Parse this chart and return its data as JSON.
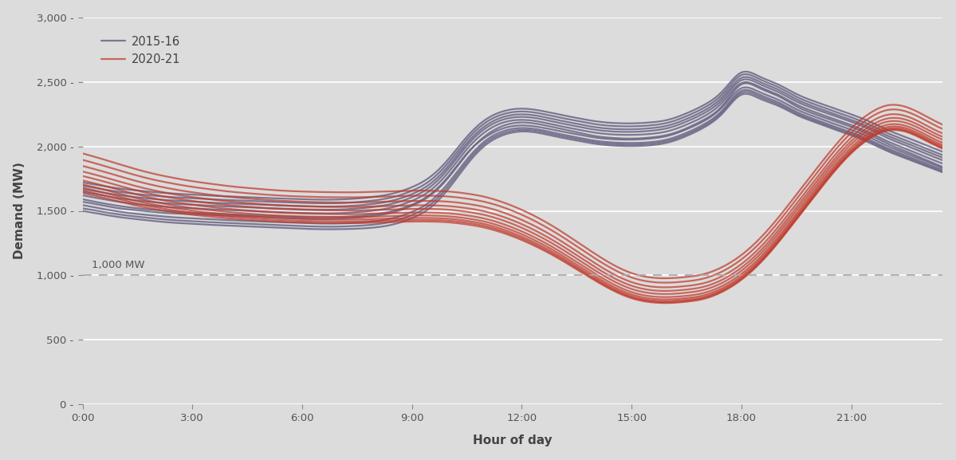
{
  "background_color": "#dcdcdc",
  "plot_bg_color": "#dcdcdc",
  "xlabel": "Hour of day",
  "ylabel": "Demand (MW)",
  "ylim": [
    0,
    3000
  ],
  "yticks": [
    0,
    500,
    1000,
    1500,
    2000,
    2500,
    3000
  ],
  "ytick_labels": [
    "0",
    "500",
    "1,000",
    "1,500",
    "2,000",
    "2,500",
    "3,000"
  ],
  "xtick_hours": [
    0,
    3,
    6,
    9,
    12,
    15,
    18,
    21
  ],
  "xtick_labels": [
    "0:00",
    "3:00",
    "6:00",
    "9:00",
    "12:00",
    "15:00",
    "18:00",
    "21:00"
  ],
  "dashed_line_y": 1000,
  "dashed_label": "1,000 MW",
  "color_2015": "#6b6585",
  "color_2020": "#c0392b",
  "alpha_2015": 0.85,
  "alpha_2020": 0.72,
  "lw_2015": 1.6,
  "lw_2020": 1.6,
  "hours": [
    0,
    0.5,
    1,
    1.5,
    2,
    2.5,
    3,
    3.5,
    4,
    4.5,
    5,
    5.5,
    6,
    6.5,
    7,
    7.5,
    8,
    8.5,
    9,
    9.5,
    10,
    10.5,
    11,
    11.5,
    12,
    12.5,
    13,
    13.5,
    14,
    14.5,
    15,
    15.5,
    16,
    16.5,
    17,
    17.5,
    18,
    18.5,
    19,
    19.5,
    20,
    20.5,
    21,
    21.5,
    22,
    22.5,
    23,
    23.5
  ],
  "lines_2015": [
    [
      1570,
      1545,
      1520,
      1505,
      1490,
      1480,
      1475,
      1468,
      1462,
      1456,
      1450,
      1445,
      1440,
      1438,
      1440,
      1448,
      1462,
      1490,
      1540,
      1620,
      1760,
      1940,
      2080,
      2160,
      2185,
      2170,
      2140,
      2110,
      2080,
      2065,
      2060,
      2068,
      2090,
      2140,
      2210,
      2320,
      2480,
      2450,
      2390,
      2310,
      2250,
      2200,
      2150,
      2090,
      2020,
      1960,
      1900,
      1840
    ],
    [
      1590,
      1562,
      1538,
      1520,
      1506,
      1495,
      1488,
      1480,
      1474,
      1468,
      1462,
      1457,
      1452,
      1450,
      1452,
      1460,
      1474,
      1500,
      1548,
      1628,
      1768,
      1945,
      2070,
      2140,
      2162,
      2148,
      2120,
      2094,
      2068,
      2055,
      2052,
      2060,
      2082,
      2132,
      2200,
      2310,
      2450,
      2420,
      2362,
      2288,
      2230,
      2178,
      2128,
      2070,
      2002,
      1945,
      1888,
      1832
    ],
    [
      1545,
      1518,
      1494,
      1476,
      1462,
      1450,
      1442,
      1434,
      1428,
      1422,
      1416,
      1411,
      1406,
      1402,
      1402,
      1408,
      1420,
      1445,
      1492,
      1572,
      1718,
      1898,
      2042,
      2118,
      2142,
      2128,
      2098,
      2070,
      2044,
      2030,
      2026,
      2032,
      2055,
      2105,
      2175,
      2285,
      2430,
      2400,
      2342,
      2268,
      2210,
      2158,
      2108,
      2050,
      1984,
      1928,
      1872,
      1818
    ],
    [
      1520,
      1495,
      1472,
      1455,
      1440,
      1428,
      1420,
      1412,
      1406,
      1400,
      1394,
      1388,
      1382,
      1378,
      1378,
      1384,
      1395,
      1420,
      1468,
      1548,
      1695,
      1878,
      2025,
      2102,
      2128,
      2115,
      2085,
      2058,
      2032,
      2018,
      2014,
      2020,
      2042,
      2092,
      2162,
      2272,
      2415,
      2385,
      2328,
      2255,
      2198,
      2146,
      2096,
      2038,
      1972,
      1915,
      1860,
      1806
    ],
    [
      1500,
      1475,
      1452,
      1435,
      1420,
      1408,
      1400,
      1392,
      1386,
      1380,
      1374,
      1368,
      1362,
      1358,
      1358,
      1362,
      1372,
      1396,
      1444,
      1525,
      1672,
      1858,
      2008,
      2088,
      2115,
      2102,
      2072,
      2045,
      2020,
      2006,
      2002,
      2008,
      2030,
      2080,
      2150,
      2260,
      2400,
      2370,
      2315,
      2244,
      2188,
      2136,
      2086,
      2028,
      1962,
      1906,
      1852,
      1798
    ],
    [
      1620,
      1594,
      1570,
      1552,
      1538,
      1527,
      1520,
      1512,
      1506,
      1500,
      1494,
      1489,
      1484,
      1481,
      1482,
      1490,
      1504,
      1530,
      1578,
      1658,
      1800,
      1978,
      2112,
      2185,
      2205,
      2190,
      2160,
      2132,
      2106,
      2092,
      2089,
      2096,
      2118,
      2168,
      2236,
      2346,
      2490,
      2460,
      2400,
      2325,
      2266,
      2215,
      2165,
      2106,
      2038,
      1980,
      1922,
      1866
    ],
    [
      1648,
      1622,
      1598,
      1580,
      1566,
      1555,
      1548,
      1540,
      1534,
      1528,
      1522,
      1517,
      1512,
      1509,
      1510,
      1518,
      1532,
      1558,
      1606,
      1686,
      1828,
      2005,
      2138,
      2208,
      2228,
      2213,
      2183,
      2155,
      2129,
      2115,
      2112,
      2120,
      2142,
      2192,
      2260,
      2368,
      2512,
      2482,
      2422,
      2348,
      2290,
      2240,
      2190,
      2132,
      2064,
      2006,
      1948,
      1892
    ],
    [
      1670,
      1645,
      1622,
      1605,
      1590,
      1580,
      1572,
      1564,
      1558,
      1552,
      1546,
      1541,
      1536,
      1533,
      1534,
      1542,
      1556,
      1582,
      1630,
      1710,
      1850,
      2025,
      2158,
      2228,
      2248,
      2233,
      2203,
      2175,
      2149,
      2135,
      2132,
      2140,
      2162,
      2212,
      2280,
      2388,
      2530,
      2500,
      2440,
      2365,
      2306,
      2255,
      2205,
      2148,
      2082,
      2025,
      1968,
      1912
    ],
    [
      1695,
      1670,
      1647,
      1630,
      1616,
      1606,
      1598,
      1590,
      1584,
      1578,
      1572,
      1567,
      1562,
      1559,
      1560,
      1568,
      1582,
      1608,
      1656,
      1736,
      1876,
      2050,
      2182,
      2250,
      2270,
      2255,
      2225,
      2198,
      2172,
      2158,
      2155,
      2162,
      2184,
      2234,
      2302,
      2410,
      2552,
      2520,
      2460,
      2385,
      2326,
      2275,
      2225,
      2168,
      2102,
      2045,
      1988,
      1932
    ],
    [
      1720,
      1696,
      1674,
      1658,
      1644,
      1634,
      1626,
      1618,
      1612,
      1606,
      1600,
      1595,
      1590,
      1587,
      1588,
      1596,
      1610,
      1636,
      1684,
      1764,
      1902,
      2074,
      2205,
      2272,
      2292,
      2277,
      2248,
      2220,
      2195,
      2181,
      2178,
      2185,
      2206,
      2256,
      2324,
      2432,
      2572,
      2540,
      2480,
      2406,
      2348,
      2298,
      2248,
      2192,
      2126,
      2070,
      2014,
      1958
    ]
  ],
  "lines_2020": [
    [
      1945,
      1905,
      1862,
      1820,
      1784,
      1755,
      1730,
      1710,
      1692,
      1678,
      1666,
      1656,
      1650,
      1646,
      1644,
      1644,
      1648,
      1652,
      1656,
      1656,
      1650,
      1634,
      1608,
      1565,
      1508,
      1438,
      1355,
      1262,
      1168,
      1082,
      1018,
      985,
      978,
      988,
      1012,
      1068,
      1158,
      1285,
      1445,
      1625,
      1808,
      1985,
      2140,
      2255,
      2318,
      2305,
      2240,
      2168
    ],
    [
      1895,
      1856,
      1814,
      1773,
      1738,
      1710,
      1686,
      1667,
      1650,
      1637,
      1626,
      1617,
      1611,
      1607,
      1605,
      1605,
      1609,
      1613,
      1617,
      1617,
      1611,
      1595,
      1569,
      1527,
      1470,
      1400,
      1318,
      1226,
      1132,
      1048,
      984,
      951,
      944,
      954,
      978,
      1034,
      1124,
      1250,
      1410,
      1590,
      1772,
      1950,
      2105,
      2220,
      2282,
      2270,
      2206,
      2135
    ],
    [
      1848,
      1810,
      1769,
      1729,
      1695,
      1667,
      1644,
      1625,
      1609,
      1596,
      1585,
      1577,
      1571,
      1567,
      1565,
      1565,
      1569,
      1573,
      1577,
      1577,
      1571,
      1555,
      1529,
      1487,
      1430,
      1361,
      1279,
      1188,
      1095,
      1011,
      948,
      915,
      908,
      918,
      942,
      998,
      1088,
      1214,
      1374,
      1554,
      1736,
      1914,
      2068,
      2183,
      2245,
      2234,
      2170,
      2100
    ],
    [
      1805,
      1768,
      1728,
      1689,
      1656,
      1629,
      1607,
      1589,
      1573,
      1561,
      1550,
      1542,
      1537,
      1533,
      1531,
      1531,
      1535,
      1539,
      1543,
      1543,
      1537,
      1521,
      1495,
      1453,
      1397,
      1328,
      1247,
      1157,
      1065,
      982,
      920,
      887,
      880,
      890,
      914,
      970,
      1060,
      1186,
      1346,
      1526,
      1708,
      1886,
      2040,
      2154,
      2216,
      2206,
      2143,
      2074
    ],
    [
      1770,
      1734,
      1695,
      1657,
      1624,
      1598,
      1577,
      1559,
      1544,
      1532,
      1521,
      1514,
      1508,
      1505,
      1503,
      1503,
      1507,
      1511,
      1515,
      1515,
      1509,
      1493,
      1467,
      1425,
      1369,
      1300,
      1220,
      1130,
      1039,
      957,
      895,
      863,
      856,
      866,
      890,
      946,
      1036,
      1162,
      1322,
      1502,
      1684,
      1862,
      2016,
      2130,
      2192,
      2182,
      2120,
      2052
    ],
    [
      1736,
      1701,
      1663,
      1626,
      1594,
      1568,
      1548,
      1530,
      1515,
      1503,
      1493,
      1485,
      1480,
      1477,
      1475,
      1475,
      1479,
      1483,
      1487,
      1487,
      1481,
      1465,
      1439,
      1397,
      1341,
      1273,
      1193,
      1104,
      1014,
      932,
      871,
      839,
      832,
      842,
      866,
      922,
      1012,
      1138,
      1298,
      1478,
      1660,
      1838,
      1992,
      2106,
      2168,
      2158,
      2096,
      2028
    ],
    [
      1705,
      1671,
      1634,
      1597,
      1567,
      1542,
      1522,
      1505,
      1491,
      1479,
      1469,
      1462,
      1457,
      1454,
      1452,
      1452,
      1456,
      1460,
      1464,
      1464,
      1458,
      1442,
      1416,
      1374,
      1319,
      1251,
      1172,
      1083,
      994,
      913,
      853,
      821,
      814,
      824,
      848,
      904,
      994,
      1120,
      1280,
      1460,
      1642,
      1820,
      1974,
      2088,
      2150,
      2140,
      2078,
      2010
    ],
    [
      1680,
      1647,
      1611,
      1575,
      1546,
      1522,
      1502,
      1485,
      1472,
      1460,
      1450,
      1443,
      1438,
      1435,
      1433,
      1433,
      1437,
      1441,
      1445,
      1445,
      1439,
      1423,
      1397,
      1355,
      1300,
      1233,
      1155,
      1067,
      979,
      899,
      839,
      808,
      801,
      811,
      835,
      891,
      981,
      1107,
      1267,
      1447,
      1629,
      1807,
      1961,
      2075,
      2137,
      2127,
      2065,
      1997
    ],
    [
      1658,
      1626,
      1591,
      1556,
      1528,
      1504,
      1485,
      1469,
      1456,
      1445,
      1435,
      1428,
      1423,
      1420,
      1418,
      1418,
      1422,
      1426,
      1430,
      1430,
      1424,
      1408,
      1382,
      1340,
      1286,
      1219,
      1142,
      1055,
      968,
      889,
      830,
      799,
      792,
      802,
      826,
      882,
      972,
      1098,
      1258,
      1438,
      1620,
      1798,
      1952,
      2066,
      2128,
      2118,
      2056,
      1988
    ],
    [
      1638,
      1607,
      1573,
      1539,
      1512,
      1489,
      1470,
      1455,
      1442,
      1431,
      1422,
      1415,
      1410,
      1407,
      1405,
      1405,
      1409,
      1413,
      1417,
      1417,
      1411,
      1395,
      1369,
      1328,
      1274,
      1208,
      1132,
      1046,
      960,
      882,
      823,
      793,
      786,
      796,
      820,
      876,
      966,
      1092,
      1252,
      1432,
      1614,
      1792,
      1946,
      2060,
      2122,
      2112,
      2050,
      1982
    ]
  ]
}
